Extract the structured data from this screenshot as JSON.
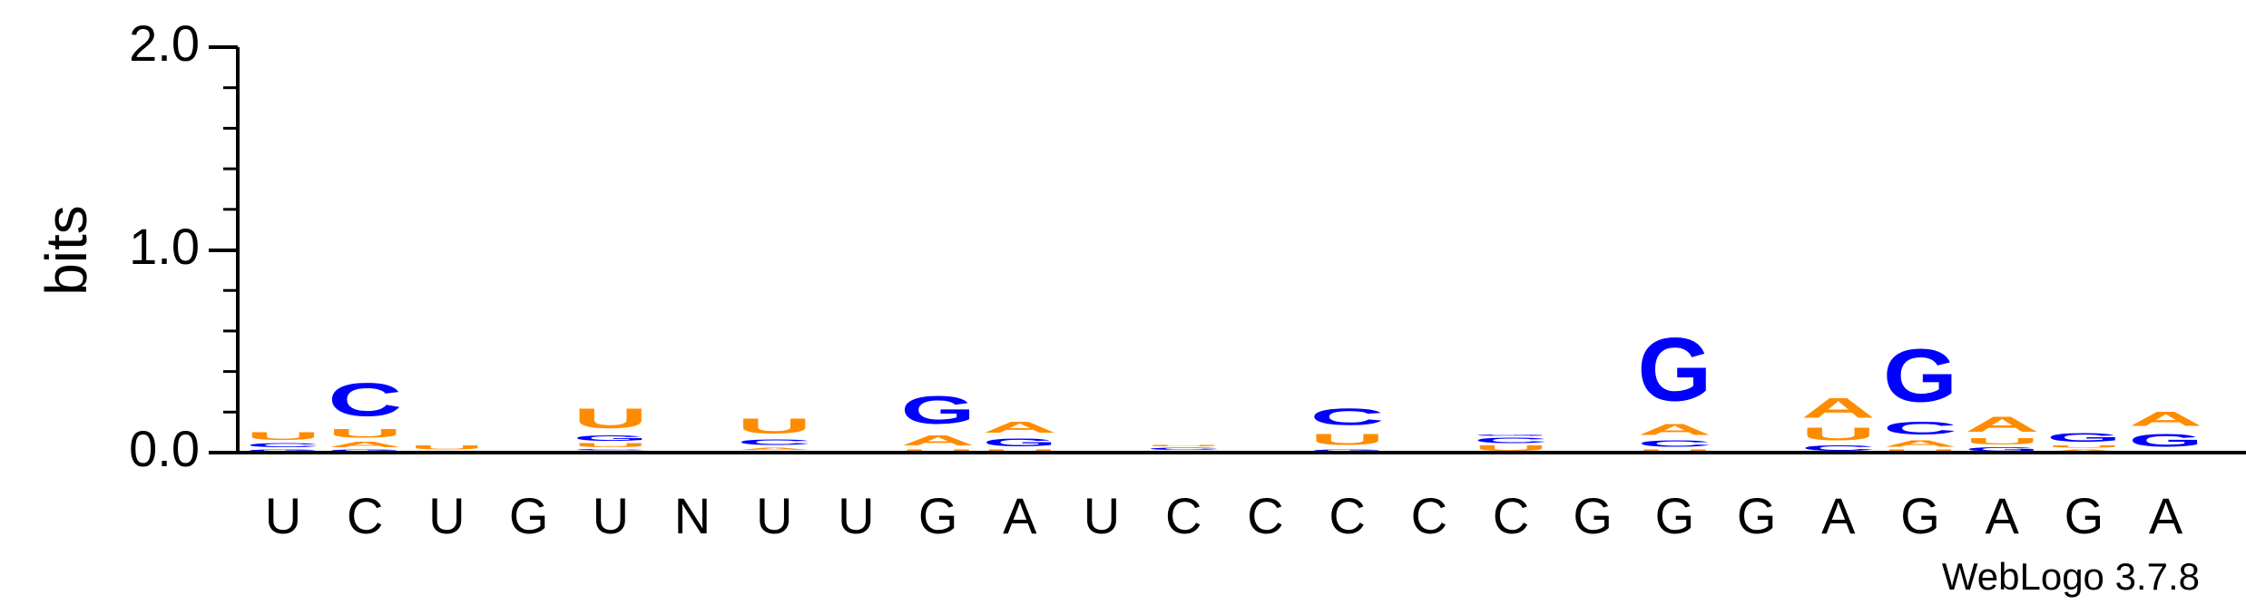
{
  "chart_data": {
    "type": "sequence-logo",
    "ylabel": "bits",
    "ylim": [
      0,
      2.0
    ],
    "yticks": [
      "0.0",
      "1.0",
      "2.0"
    ],
    "consensus": [
      "U",
      "C",
      "U",
      "G",
      "U",
      "N",
      "U",
      "U",
      "G",
      "A",
      "U",
      "C",
      "C",
      "C",
      "C",
      "C",
      "G",
      "G",
      "G",
      "A",
      "G",
      "A",
      "G",
      "A"
    ],
    "colors": {
      "A": "#ff8c00",
      "U": "#ff8c00",
      "C": "#0000ff",
      "G": "#0000ff"
    },
    "positions": [
      [
        {
          "l": "G",
          "h": 0.02
        },
        {
          "l": "C",
          "h": 0.03
        },
        {
          "l": "U",
          "h": 0.06
        }
      ],
      [
        {
          "l": "G",
          "h": 0.02
        },
        {
          "l": "A",
          "h": 0.04
        },
        {
          "l": "U",
          "h": 0.07
        },
        {
          "l": "C",
          "h": 0.26
        }
      ],
      [
        {
          "l": "A",
          "h": 0.01
        },
        {
          "l": "U",
          "h": 0.03
        }
      ],
      [
        {
          "l": "U",
          "h": 0.01
        }
      ],
      [
        {
          "l": "A",
          "h": 0.01
        },
        {
          "l": "C",
          "h": 0.01
        },
        {
          "l": "U",
          "h": 0.03
        },
        {
          "l": "G",
          "h": 0.04
        },
        {
          "l": "U",
          "h": 0.16
        }
      ],
      [],
      [
        {
          "l": "G",
          "h": 0.01
        },
        {
          "l": "A",
          "h": 0.02
        },
        {
          "l": "C",
          "h": 0.04
        },
        {
          "l": "U",
          "h": 0.12
        }
      ],
      [],
      [
        {
          "l": "U",
          "h": 0.02
        },
        {
          "l": "A",
          "h": 0.08
        },
        {
          "l": "G",
          "h": 0.22
        }
      ],
      [
        {
          "l": "U",
          "h": 0.02
        },
        {
          "l": "G",
          "h": 0.06
        },
        {
          "l": "A",
          "h": 0.09
        }
      ],
      [
        {
          "l": "U",
          "h": 0.01
        }
      ],
      [
        {
          "l": "A",
          "h": 0.01
        },
        {
          "l": "C",
          "h": 0.02
        },
        {
          "l": "U",
          "h": 0.01
        }
      ],
      [],
      [
        {
          "l": "G",
          "h": 0.02
        },
        {
          "l": "U",
          "h": 0.09
        },
        {
          "l": "C",
          "h": 0.13
        }
      ],
      [
        {
          "l": "G",
          "h": 0.01
        }
      ],
      [
        {
          "l": "U",
          "h": 0.04
        },
        {
          "l": "C",
          "h": 0.04
        },
        {
          "l": "G",
          "h": 0.01
        }
      ],
      [
        {
          "l": "G",
          "h": 0.01
        }
      ],
      [
        {
          "l": "U",
          "h": 0.02
        },
        {
          "l": "C",
          "h": 0.05
        },
        {
          "l": "A",
          "h": 0.09
        },
        {
          "l": "G",
          "h": 0.5
        }
      ],
      [
        {
          "l": "A",
          "h": 0.01
        }
      ],
      [
        {
          "l": "C",
          "h": 0.04
        },
        {
          "l": "U",
          "h": 0.1
        },
        {
          "l": "A",
          "h": 0.16
        }
      ],
      [
        {
          "l": "U",
          "h": 0.02
        },
        {
          "l": "A",
          "h": 0.05
        },
        {
          "l": "C",
          "h": 0.1
        },
        {
          "l": "G",
          "h": 0.42
        }
      ],
      [
        {
          "l": "G",
          "h": 0.03
        },
        {
          "l": "U",
          "h": 0.05
        },
        {
          "l": "A",
          "h": 0.12
        }
      ],
      [
        {
          "l": "A",
          "h": 0.02
        },
        {
          "l": "U",
          "h": 0.02
        },
        {
          "l": "G",
          "h": 0.07
        }
      ],
      [
        {
          "l": "A",
          "h": 0.01
        },
        {
          "l": "G",
          "h": 0.1
        },
        {
          "l": "A",
          "h": 0.11
        }
      ]
    ]
  },
  "credit": "WebLogo 3.7.8"
}
